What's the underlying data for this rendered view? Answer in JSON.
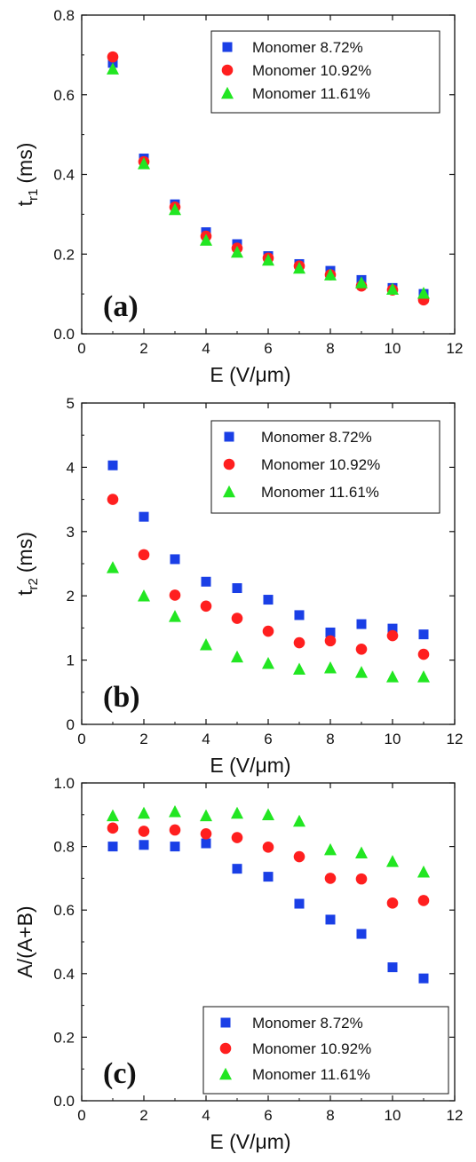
{
  "chart_data": [
    {
      "type": "scatter",
      "panel_label": "(a)",
      "ylabel_main": "t",
      "ylabel_sub": "r1",
      "ylabel_unit": "(ms)",
      "xlabel": "E (V/μm)",
      "xlim": [
        0,
        12
      ],
      "ylim": [
        0.0,
        0.8
      ],
      "x_ticks": [
        "0",
        "2",
        "4",
        "6",
        "8",
        "10",
        "12"
      ],
      "y_ticks": [
        "0.0",
        "0.2",
        "0.4",
        "0.6",
        "0.8"
      ],
      "legend_position": "top-right",
      "grid": false,
      "series": [
        {
          "name": "Monomer 8.72%",
          "marker": "square",
          "color": "#1a3fe6",
          "x": [
            1,
            2,
            3,
            4,
            5,
            6,
            7,
            8,
            9,
            10,
            11
          ],
          "y": [
            0.68,
            0.44,
            0.325,
            0.255,
            0.225,
            0.195,
            0.175,
            0.158,
            0.135,
            0.115,
            0.1
          ]
        },
        {
          "name": "Monomer 10.92%",
          "marker": "circle",
          "color": "#ff1f1f",
          "x": [
            1,
            2,
            3,
            4,
            5,
            6,
            7,
            8,
            9,
            10,
            11
          ],
          "y": [
            0.695,
            0.432,
            0.318,
            0.245,
            0.215,
            0.19,
            0.17,
            0.148,
            0.12,
            0.11,
            0.085
          ]
        },
        {
          "name": "Monomer 11.61%",
          "marker": "triangle",
          "color": "#22e622",
          "x": [
            1,
            2,
            3,
            4,
            5,
            6,
            7,
            8,
            9,
            10,
            11
          ],
          "y": [
            0.665,
            0.427,
            0.312,
            0.235,
            0.205,
            0.185,
            0.165,
            0.148,
            0.128,
            0.112,
            0.102
          ]
        }
      ]
    },
    {
      "type": "scatter",
      "panel_label": "(b)",
      "ylabel_main": "t",
      "ylabel_sub": "r2",
      "ylabel_unit": "(ms)",
      "xlabel": "E (V/μm)",
      "xlim": [
        0,
        12
      ],
      "ylim": [
        0,
        5
      ],
      "x_ticks": [
        "0",
        "2",
        "4",
        "6",
        "8",
        "10",
        "12"
      ],
      "y_ticks": [
        "0",
        "1",
        "2",
        "3",
        "4",
        "5"
      ],
      "legend_position": "top-right",
      "grid": false,
      "series": [
        {
          "name": "Monomer 8.72%",
          "marker": "square",
          "color": "#1a3fe6",
          "x": [
            1,
            2,
            3,
            4,
            5,
            6,
            7,
            8,
            9,
            10,
            11
          ],
          "y": [
            4.03,
            3.23,
            2.57,
            2.22,
            2.12,
            1.94,
            1.7,
            1.43,
            1.56,
            1.49,
            1.4
          ]
        },
        {
          "name": "Monomer 10.92%",
          "marker": "circle",
          "color": "#ff1f1f",
          "x": [
            1,
            2,
            3,
            4,
            5,
            6,
            7,
            8,
            9,
            10,
            11
          ],
          "y": [
            3.5,
            2.64,
            2.01,
            1.84,
            1.65,
            1.45,
            1.27,
            1.3,
            1.17,
            1.38,
            1.09
          ]
        },
        {
          "name": "Monomer 11.61%",
          "marker": "triangle",
          "color": "#22e622",
          "x": [
            1,
            2,
            3,
            4,
            5,
            6,
            7,
            8,
            9,
            10,
            11
          ],
          "y": [
            2.44,
            2.0,
            1.68,
            1.24,
            1.05,
            0.95,
            0.86,
            0.88,
            0.81,
            0.74,
            0.74
          ]
        }
      ]
    },
    {
      "type": "scatter",
      "panel_label": "(c)",
      "ylabel_main": "A/(A+B)",
      "ylabel_sub": "",
      "ylabel_unit": "",
      "xlabel": "E (V/μm)",
      "xlim": [
        0,
        12
      ],
      "ylim": [
        0.0,
        1.0
      ],
      "x_ticks": [
        "0",
        "2",
        "4",
        "6",
        "8",
        "10",
        "12"
      ],
      "y_ticks": [
        "0.0",
        "0.2",
        "0.4",
        "0.6",
        "0.8",
        "1.0"
      ],
      "legend_position": "bottom-right",
      "grid": false,
      "series": [
        {
          "name": "Monomer 8.72%",
          "marker": "square",
          "color": "#1a3fe6",
          "x": [
            1,
            2,
            3,
            4,
            5,
            6,
            7,
            8,
            9,
            10,
            11
          ],
          "y": [
            0.8,
            0.805,
            0.8,
            0.81,
            0.73,
            0.705,
            0.62,
            0.57,
            0.525,
            0.42,
            0.385
          ]
        },
        {
          "name": "Monomer 10.92%",
          "marker": "circle",
          "color": "#ff1f1f",
          "x": [
            1,
            2,
            3,
            4,
            5,
            6,
            7,
            8,
            9,
            10,
            11
          ],
          "y": [
            0.858,
            0.848,
            0.852,
            0.84,
            0.828,
            0.798,
            0.768,
            0.7,
            0.698,
            0.622,
            0.63
          ]
        },
        {
          "name": "Monomer 11.61%",
          "marker": "triangle",
          "color": "#22e622",
          "x": [
            1,
            2,
            3,
            4,
            5,
            6,
            7,
            8,
            9,
            10,
            11
          ],
          "y": [
            0.897,
            0.905,
            0.91,
            0.897,
            0.905,
            0.9,
            0.88,
            0.79,
            0.78,
            0.753,
            0.72
          ]
        }
      ]
    }
  ]
}
